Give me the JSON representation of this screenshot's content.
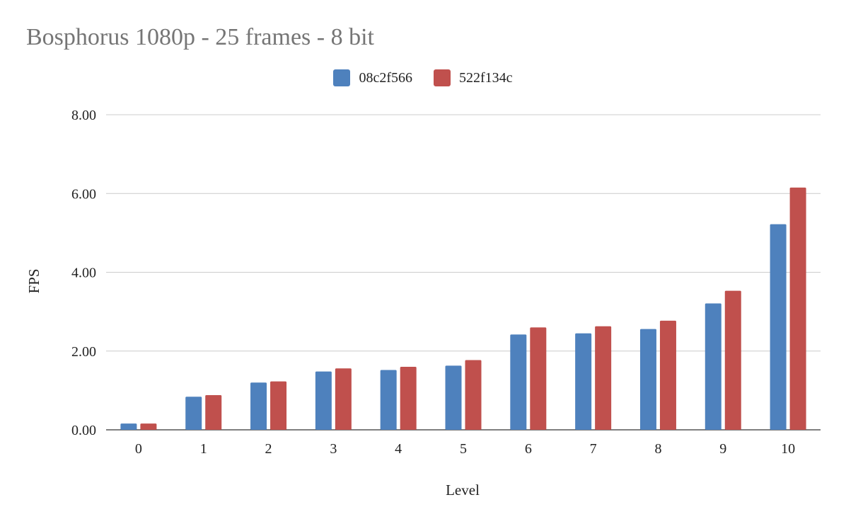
{
  "chart_data": {
    "type": "bar",
    "title": "Bosphorus 1080p - 25 frames - 8 bit",
    "xlabel": "Level",
    "ylabel": "FPS",
    "categories": [
      "0",
      "1",
      "2",
      "3",
      "4",
      "5",
      "6",
      "7",
      "8",
      "9",
      "10"
    ],
    "series": [
      {
        "name": "08c2f566",
        "color": "#4e81bd",
        "values": [
          0.16,
          0.84,
          1.2,
          1.48,
          1.52,
          1.63,
          2.42,
          2.45,
          2.56,
          3.21,
          5.22
        ]
      },
      {
        "name": "522f134c",
        "color": "#c0504d",
        "values": [
          0.16,
          0.88,
          1.23,
          1.56,
          1.6,
          1.77,
          2.6,
          2.63,
          2.77,
          3.53,
          6.15
        ]
      }
    ],
    "ylim": [
      0,
      8
    ],
    "yticks": [
      "0.00",
      "2.00",
      "4.00",
      "6.00",
      "8.00"
    ],
    "grid": true,
    "legend_position": "top-center"
  }
}
